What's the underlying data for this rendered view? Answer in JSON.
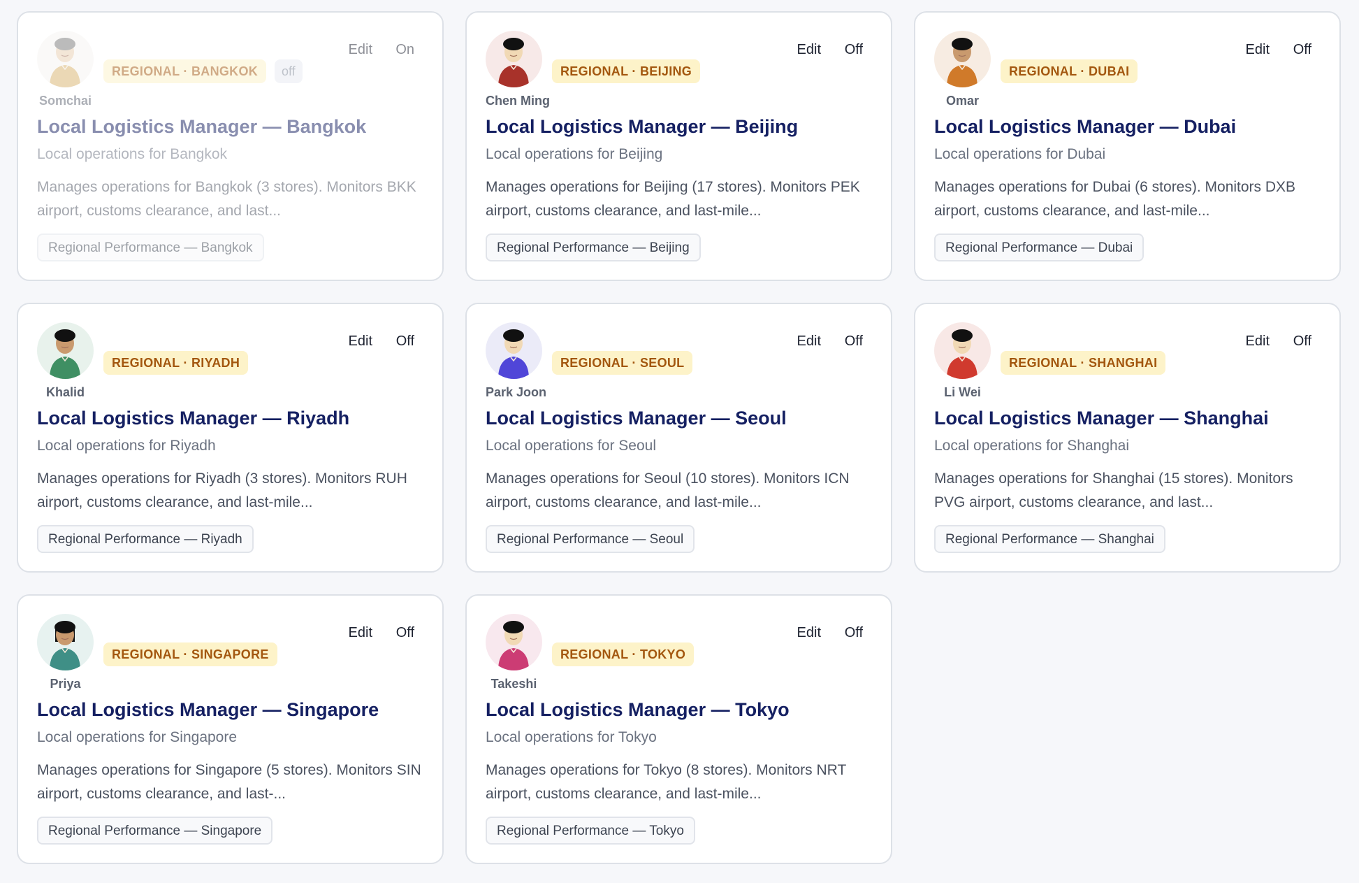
{
  "cards": [
    {
      "name": "Somchai",
      "badge": "REGIONAL · BANGKOK",
      "status_badge": "off",
      "edit": "Edit",
      "toggle": "On",
      "title": "Local Logistics Manager — Bangkok",
      "subtitle": "Local operations for Bangkok",
      "description": "Manages operations for Bangkok (3 stores). Monitors BKK airport, customs clearance, and last...",
      "tag": "Regional Performance — Bangkok",
      "disabled": true,
      "colors": {
        "bg": "#f7f5f2",
        "hair": "#7a7a7a",
        "skin": "#e8cfb0",
        "shirt": "#d9b36e"
      }
    },
    {
      "name": "Chen Ming",
      "badge": "REGIONAL · BEIJING",
      "edit": "Edit",
      "toggle": "Off",
      "title": "Local Logistics Manager — Beijing",
      "subtitle": "Local operations for Beijing",
      "description": "Manages operations for Beijing (17 stores). Monitors PEK airport, customs clearance, and last-mile...",
      "tag": "Regional Performance — Beijing",
      "colors": {
        "bg": "#f7e9e8",
        "hair": "#111111",
        "skin": "#f1d9b5",
        "shirt": "#a8322a"
      }
    },
    {
      "name": "Omar",
      "badge": "REGIONAL · DUBAI",
      "edit": "Edit",
      "toggle": "Off",
      "title": "Local Logistics Manager — Dubai",
      "subtitle": "Local operations for Dubai",
      "description": "Manages operations for Dubai (6 stores). Monitors DXB airport, customs clearance, and last-mile...",
      "tag": "Regional Performance — Dubai",
      "colors": {
        "bg": "#f7ece2",
        "hair": "#111111",
        "skin": "#c99a6e",
        "shirt": "#d07a2a"
      }
    },
    {
      "name": "Khalid",
      "badge": "REGIONAL · RIYADH",
      "edit": "Edit",
      "toggle": "Off",
      "title": "Local Logistics Manager — Riyadh",
      "subtitle": "Local operations for Riyadh",
      "description": "Manages operations for Riyadh (3 stores). Monitors RUH airport, customs clearance, and last-mile...",
      "tag": "Regional Performance — Riyadh",
      "colors": {
        "bg": "#e8f2ec",
        "hair": "#111111",
        "skin": "#c99a6e",
        "shirt": "#3f8f63"
      }
    },
    {
      "name": "Park Joon",
      "badge": "REGIONAL · SEOUL",
      "edit": "Edit",
      "toggle": "Off",
      "title": "Local Logistics Manager — Seoul",
      "subtitle": "Local operations for Seoul",
      "description": "Manages operations for Seoul (10 stores). Monitors ICN airport, customs clearance, and last-mile...",
      "tag": "Regional Performance — Seoul",
      "colors": {
        "bg": "#ebebf8",
        "hair": "#111111",
        "skin": "#f1d9b5",
        "shirt": "#5046d8"
      }
    },
    {
      "name": "Li Wei",
      "badge": "REGIONAL · SHANGHAI",
      "edit": "Edit",
      "toggle": "Off",
      "title": "Local Logistics Manager — Shanghai",
      "subtitle": "Local operations for Shanghai",
      "description": "Manages operations for Shanghai (15 stores). Monitors PVG airport, customs clearance, and last...",
      "tag": "Regional Performance — Shanghai",
      "colors": {
        "bg": "#f8e8e6",
        "hair": "#111111",
        "skin": "#f1d9b5",
        "shirt": "#d03a2e"
      }
    },
    {
      "name": "Priya",
      "badge": "REGIONAL · SINGAPORE",
      "edit": "Edit",
      "toggle": "Off",
      "title": "Local Logistics Manager — Singapore",
      "subtitle": "Local operations for Singapore",
      "description": "Manages operations for Singapore (5 stores). Monitors SIN airport, customs clearance, and last-...",
      "tag": "Regional Performance — Singapore",
      "colors": {
        "bg": "#e7f2f0",
        "hair": "#111111",
        "skin": "#c99a6e",
        "shirt": "#3f8f86"
      },
      "long_hair": true
    },
    {
      "name": "Takeshi",
      "badge": "REGIONAL · TOKYO",
      "edit": "Edit",
      "toggle": "Off",
      "title": "Local Logistics Manager — Tokyo",
      "subtitle": "Local operations for Tokyo",
      "description": "Manages operations for Tokyo (8 stores). Monitors NRT airport, customs clearance, and last-mile...",
      "tag": "Regional Performance — Tokyo",
      "colors": {
        "bg": "#f8e8ee",
        "hair": "#111111",
        "skin": "#f1d9b5",
        "shirt": "#cc3c74"
      }
    }
  ]
}
